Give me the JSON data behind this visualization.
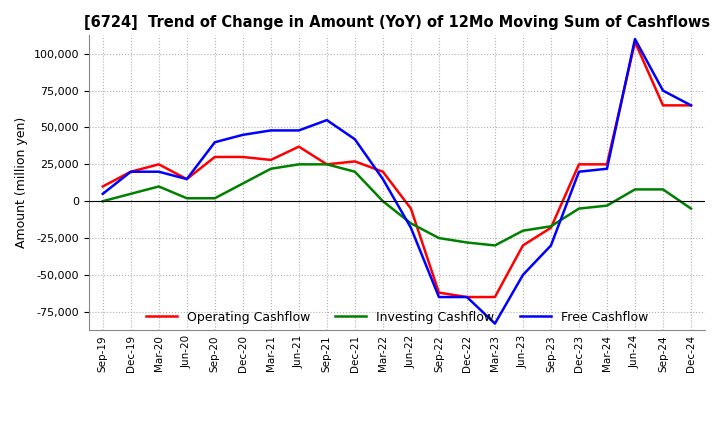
{
  "title": "[6724]  Trend of Change in Amount (YoY) of 12Mo Moving Sum of Cashflows",
  "ylabel": "Amount (million yen)",
  "ylim": [
    -87500,
    112500
  ],
  "yticks": [
    -75000,
    -50000,
    -25000,
    0,
    25000,
    50000,
    75000,
    100000
  ],
  "background_color": "#ffffff",
  "grid_color": "#b0b0b0",
  "dates": [
    "Sep-19",
    "Dec-19",
    "Mar-20",
    "Jun-20",
    "Sep-20",
    "Dec-20",
    "Mar-21",
    "Jun-21",
    "Sep-21",
    "Dec-21",
    "Mar-22",
    "Jun-22",
    "Sep-22",
    "Dec-22",
    "Mar-23",
    "Jun-23",
    "Sep-23",
    "Dec-23",
    "Mar-24",
    "Jun-24",
    "Sep-24",
    "Dec-24"
  ],
  "operating": [
    10000,
    20000,
    25000,
    15000,
    30000,
    30000,
    28000,
    37000,
    25000,
    27000,
    20000,
    -5000,
    -62000,
    -65000,
    -65000,
    -30000,
    -18000,
    25000,
    25000,
    108000,
    65000,
    65000
  ],
  "investing": [
    0,
    5000,
    10000,
    2000,
    2000,
    12000,
    22000,
    25000,
    25000,
    20000,
    0,
    -15000,
    -25000,
    -28000,
    -30000,
    -20000,
    -17000,
    -5000,
    -3000,
    8000,
    8000,
    -5000
  ],
  "free": [
    5000,
    20000,
    20000,
    15000,
    40000,
    45000,
    48000,
    48000,
    55000,
    42000,
    15000,
    -18000,
    -65000,
    -65000,
    -83000,
    -50000,
    -30000,
    20000,
    22000,
    110000,
    75000,
    65000
  ],
  "operating_color": "#ff0000",
  "investing_color": "#008000",
  "free_color": "#0000ff",
  "line_width": 1.8
}
